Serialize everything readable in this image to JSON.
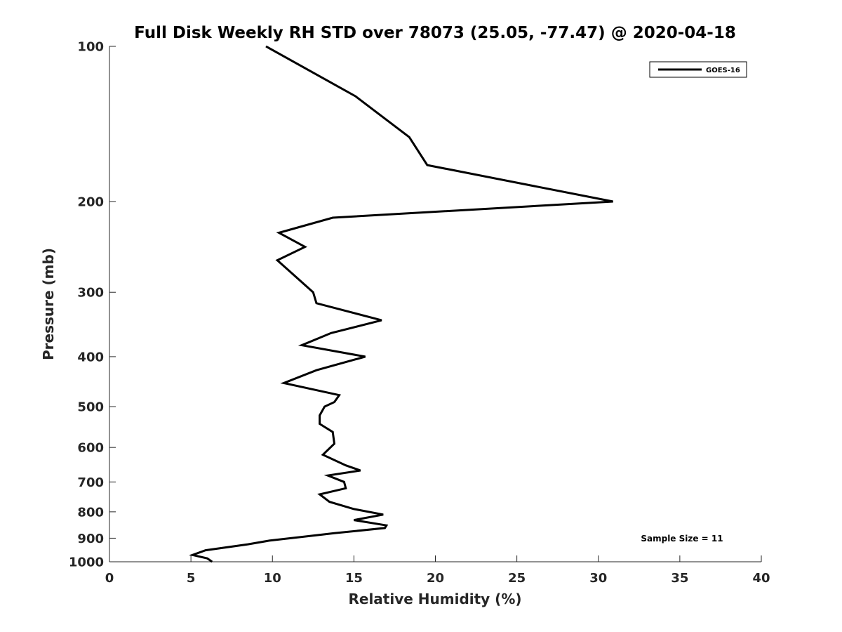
{
  "chart_data": {
    "type": "line",
    "title": "Full Disk Weekly RH STD over 78073 (25.05, -77.47) @ 2020-04-18",
    "xlabel": "Relative Humidity (%)",
    "ylabel": "Pressure (mb)",
    "xlim": [
      0,
      40
    ],
    "ylim": [
      100,
      1000
    ],
    "y_scale": "log",
    "y_reversed": true,
    "x_ticks": [
      0,
      5,
      10,
      15,
      20,
      25,
      30,
      35,
      40
    ],
    "y_ticks": [
      100,
      200,
      300,
      400,
      500,
      600,
      700,
      800,
      900,
      1000
    ],
    "grid": false,
    "legend_position": "top-right",
    "series": [
      {
        "name": "GOES-16",
        "color": "#000000",
        "points": [
          [
            9.6,
            100
          ],
          [
            15.1,
            125
          ],
          [
            18.4,
            150
          ],
          [
            19.5,
            170
          ],
          [
            30.9,
            200
          ],
          [
            13.7,
            215
          ],
          [
            10.4,
            230
          ],
          [
            12.0,
            245
          ],
          [
            10.3,
            260
          ],
          [
            12.5,
            300
          ],
          [
            12.7,
            315
          ],
          [
            16.7,
            340
          ],
          [
            13.6,
            360
          ],
          [
            11.8,
            380
          ],
          [
            15.7,
            400
          ],
          [
            12.7,
            425
          ],
          [
            10.7,
            450
          ],
          [
            14.1,
            475
          ],
          [
            13.8,
            490
          ],
          [
            13.2,
            500
          ],
          [
            12.9,
            520
          ],
          [
            12.9,
            540
          ],
          [
            13.7,
            560
          ],
          [
            13.8,
            590
          ],
          [
            13.1,
            620
          ],
          [
            14.5,
            650
          ],
          [
            15.4,
            665
          ],
          [
            13.4,
            680
          ],
          [
            14.4,
            700
          ],
          [
            14.5,
            720
          ],
          [
            12.9,
            740
          ],
          [
            13.5,
            765
          ],
          [
            15.0,
            790
          ],
          [
            16.8,
            810
          ],
          [
            15.0,
            830
          ],
          [
            17.0,
            850
          ],
          [
            16.9,
            860
          ],
          [
            13.8,
            880
          ],
          [
            9.8,
            910
          ],
          [
            8.5,
            925
          ],
          [
            5.9,
            950
          ],
          [
            5.1,
            970
          ],
          [
            6.0,
            985
          ],
          [
            6.3,
            1000
          ]
        ]
      }
    ],
    "annotations": [
      "Sample Size = 11"
    ]
  }
}
